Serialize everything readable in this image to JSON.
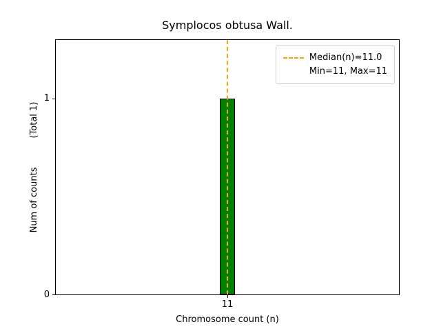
{
  "chart_data": {
    "type": "bar",
    "title": "Symplocos obtusa Wall.",
    "xlabel": "Chromosome count (n)",
    "ylabel": "Num of counts",
    "ylabel_note": "(Total 1)",
    "categories": [
      "11"
    ],
    "values": [
      1
    ],
    "total": 1,
    "median": 11.0,
    "min": 11,
    "max": 11,
    "ylim": [
      0,
      1.3
    ],
    "yticks": [
      "0",
      "1"
    ],
    "xticks": [
      "11"
    ],
    "bar_color": "#008000",
    "bar_edge_color": "#000000",
    "median_line_color": "#FFA500",
    "legend_position": "upper right",
    "legend": {
      "median_label": "Median(n)=11.0",
      "minmax_label": "Min=11, Max=11"
    },
    "grid": false
  }
}
